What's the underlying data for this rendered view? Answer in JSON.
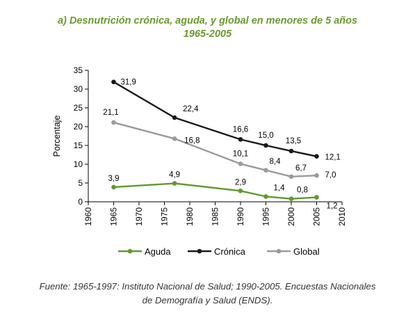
{
  "chart_data": {
    "type": "line",
    "title": "a) Desnutrición crónica, aguda, y global en menores de 5 años",
    "subtitle": "1965-2005",
    "xlabel": "",
    "ylabel": "Porcentaje",
    "xlim": [
      1960,
      2010
    ],
    "ylim": [
      0,
      35
    ],
    "x_ticks": [
      "1960",
      "1965",
      "1970",
      "1975",
      "1980",
      "1985",
      "1990",
      "1995",
      "2000",
      "2005",
      "2010"
    ],
    "y_ticks": [
      "0",
      "5",
      "10",
      "15",
      "20",
      "25",
      "30",
      "35"
    ],
    "grid": false,
    "legend_position": "bottom",
    "series": [
      {
        "name": "Aguda",
        "color": "#5e9a2c",
        "x": [
          1965,
          1977,
          1990,
          1995,
          2000,
          2005
        ],
        "values": [
          3.9,
          4.9,
          2.9,
          1.4,
          0.8,
          1.2
        ],
        "labels": [
          "3,9",
          "4,9",
          "2,9",
          "1,4",
          "0,8",
          "1,2"
        ]
      },
      {
        "name": "Crónica",
        "color": "#1a1a1a",
        "x": [
          1965,
          1977,
          1990,
          1995,
          2000,
          2005
        ],
        "values": [
          31.9,
          22.4,
          16.6,
          15.0,
          13.5,
          12.1
        ],
        "labels": [
          "31,9",
          "22,4",
          "16,6",
          "15,0",
          "13,5",
          "12,1"
        ]
      },
      {
        "name": "Global",
        "color": "#9a9a9a",
        "x": [
          1965,
          1977,
          1990,
          1995,
          2000,
          2005
        ],
        "values": [
          21.1,
          16.8,
          10.1,
          8.4,
          6.7,
          7.0
        ],
        "labels": [
          "21,1",
          "16,8",
          "10,1",
          "8,4",
          "6,7",
          "7,0"
        ]
      }
    ]
  },
  "source": {
    "line1": "Fuente: 1965-1997: Instituto Nacional de Salud; 1990-2005. Encuestas Nacionales",
    "line2": "de Demografía  y Salud (ENDS)."
  }
}
